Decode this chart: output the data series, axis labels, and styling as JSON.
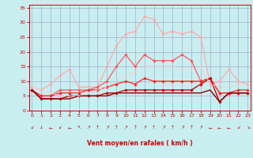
{
  "background_color": "#c8eef0",
  "grid_color": "#aaaacc",
  "xlabel": "Vent moyen/en rafales ( km/h )",
  "xlabel_color": "#cc0000",
  "tick_color": "#cc0000",
  "x_ticks": [
    0,
    1,
    2,
    3,
    4,
    5,
    6,
    7,
    8,
    9,
    10,
    11,
    12,
    13,
    14,
    15,
    16,
    17,
    18,
    19,
    20,
    21,
    22,
    23
  ],
  "y_ticks": [
    0,
    5,
    10,
    15,
    20,
    25,
    30,
    35
  ],
  "ylim": [
    0,
    36
  ],
  "xlim": [
    -0.3,
    23.3
  ],
  "series": [
    {
      "color": "#ffaaaa",
      "linewidth": 0.9,
      "marker": "D",
      "markersize": 1.8,
      "dashed": false,
      "values": [
        8,
        7,
        9,
        12,
        14,
        8,
        8,
        8,
        15,
        22,
        26,
        27,
        32,
        31,
        26,
        27,
        26,
        27,
        25,
        9,
        10,
        14,
        10,
        9
      ]
    },
    {
      "color": "#ff5555",
      "linewidth": 0.9,
      "marker": "D",
      "markersize": 1.8,
      "dashed": false,
      "values": [
        7,
        5,
        5,
        7,
        7,
        7,
        7,
        8,
        10,
        15,
        19,
        15,
        19,
        17,
        17,
        17,
        19,
        17,
        10,
        11,
        6,
        6,
        6,
        6
      ]
    },
    {
      "color": "#ff2222",
      "linewidth": 0.9,
      "marker": "D",
      "markersize": 1.8,
      "dashed": false,
      "values": [
        7,
        5,
        5,
        6,
        6,
        6,
        7,
        7,
        8,
        9,
        10,
        9,
        11,
        10,
        10,
        10,
        10,
        10,
        10,
        11,
        6,
        6,
        7,
        7
      ]
    },
    {
      "color": "#cc0000",
      "linewidth": 1.0,
      "marker": "D",
      "markersize": 1.8,
      "dashed": false,
      "values": [
        7,
        4,
        4,
        4,
        5,
        5,
        5,
        5,
        6,
        6,
        7,
        7,
        7,
        7,
        7,
        7,
        7,
        7,
        9,
        11,
        3,
        6,
        6,
        6
      ]
    },
    {
      "color": "#880000",
      "linewidth": 1.0,
      "marker": null,
      "markersize": 0,
      "dashed": false,
      "values": [
        7,
        4,
        4,
        4,
        4,
        5,
        5,
        5,
        5,
        6,
        6,
        6,
        6,
        6,
        6,
        6,
        6,
        6,
        6,
        7,
        3,
        6,
        6,
        6
      ]
    },
    {
      "color": "#ffcccc",
      "linewidth": 0.8,
      "marker": null,
      "markersize": 0,
      "dashed": true,
      "values": [
        8,
        7,
        6,
        5,
        5,
        5,
        6,
        7,
        8,
        10,
        12,
        13,
        15,
        15,
        15,
        15,
        14,
        14,
        15,
        9,
        8,
        8,
        9,
        9
      ]
    }
  ],
  "arrows": [
    "↙",
    "↓",
    "←",
    "↙",
    "←",
    "↖",
    "↗",
    "↑",
    "↗",
    "↑",
    "↗",
    "↑",
    "↗",
    "↑",
    "↗",
    "↑",
    "↗",
    "↑",
    "↗",
    "←",
    "←",
    "←",
    "↙",
    "↘"
  ]
}
